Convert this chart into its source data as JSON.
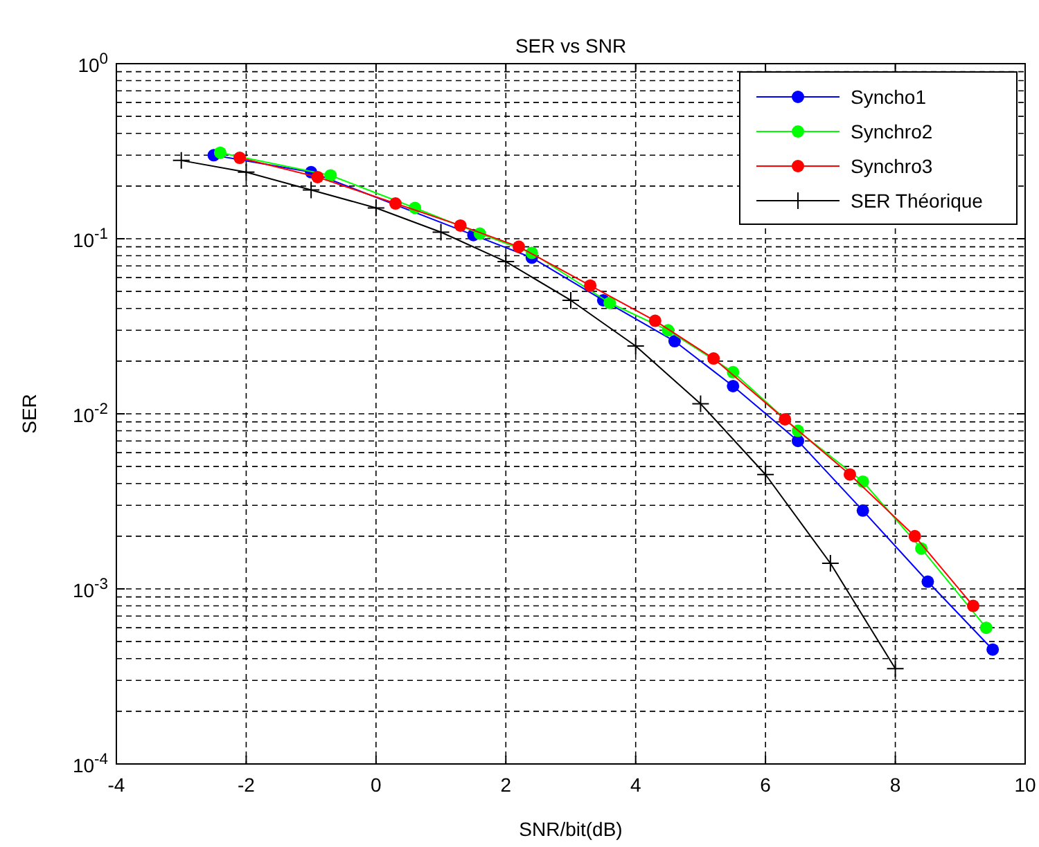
{
  "chart_data": {
    "type": "line",
    "title": "SER vs SNR",
    "xlabel": "SNR/bit(dB)",
    "ylabel": "SER",
    "log": "y",
    "grid": true,
    "legend": "top right",
    "xlim": [
      -4,
      10
    ],
    "xticks": [
      -4,
      -2,
      0,
      2,
      4,
      6,
      8,
      10
    ],
    "ylim": [
      0.0001,
      1
    ],
    "yticks": [
      {
        "value": 0.0001,
        "label": "10$^{-4}$"
      },
      {
        "value": 0.001,
        "label": "10$^{-3}$"
      },
      {
        "value": 0.01,
        "label": "10$^{-2}$"
      },
      {
        "value": 0.1,
        "label": "10$^{-1}$"
      },
      {
        "value": 1,
        "label": "10$^{0}$"
      }
    ],
    "series": [
      {
        "name": "Syncho1",
        "color": "#0000ff",
        "marker": "circle",
        "x": [
          -2.5,
          -1,
          1.5,
          2.4,
          3.5,
          4.6,
          5.5,
          6.5,
          7.5,
          8.5,
          9.5
        ],
        "values": [
          0.3,
          0.24,
          0.105,
          0.078,
          0.0445,
          0.026,
          0.0144,
          0.007,
          0.0028,
          0.0011,
          0.00045
        ]
      },
      {
        "name": "Synchro2",
        "color": "#00ff00",
        "marker": "circle",
        "x": [
          -2.4,
          -0.7,
          0.6,
          1.6,
          2.4,
          3.6,
          4.5,
          5.5,
          6.5,
          7.5,
          8.4,
          9.4
        ],
        "values": [
          0.31,
          0.23,
          0.15,
          0.107,
          0.083,
          0.043,
          0.03,
          0.0173,
          0.008,
          0.0041,
          0.0017,
          0.0006
        ]
      },
      {
        "name": "Synchro3",
        "color": "#ff0000",
        "marker": "circle",
        "x": [
          -2.1,
          -0.9,
          0.3,
          1.3,
          2.2,
          3.3,
          4.3,
          5.2,
          6.3,
          7.3,
          8.3,
          9.2
        ],
        "values": [
          0.29,
          0.225,
          0.159,
          0.119,
          0.09,
          0.054,
          0.034,
          0.0207,
          0.0093,
          0.0045,
          0.002,
          0.0008
        ]
      },
      {
        "name": "SER Théorique",
        "color": "#000000",
        "marker": "cross",
        "x": [
          -3,
          -2,
          -1,
          0,
          1,
          2,
          3,
          4,
          5,
          6,
          7,
          8
        ],
        "values": [
          0.28,
          0.24,
          0.19,
          0.15,
          0.109,
          0.074,
          0.0445,
          0.0244,
          0.0114,
          0.0045,
          0.0014,
          0.00035
        ]
      }
    ]
  }
}
